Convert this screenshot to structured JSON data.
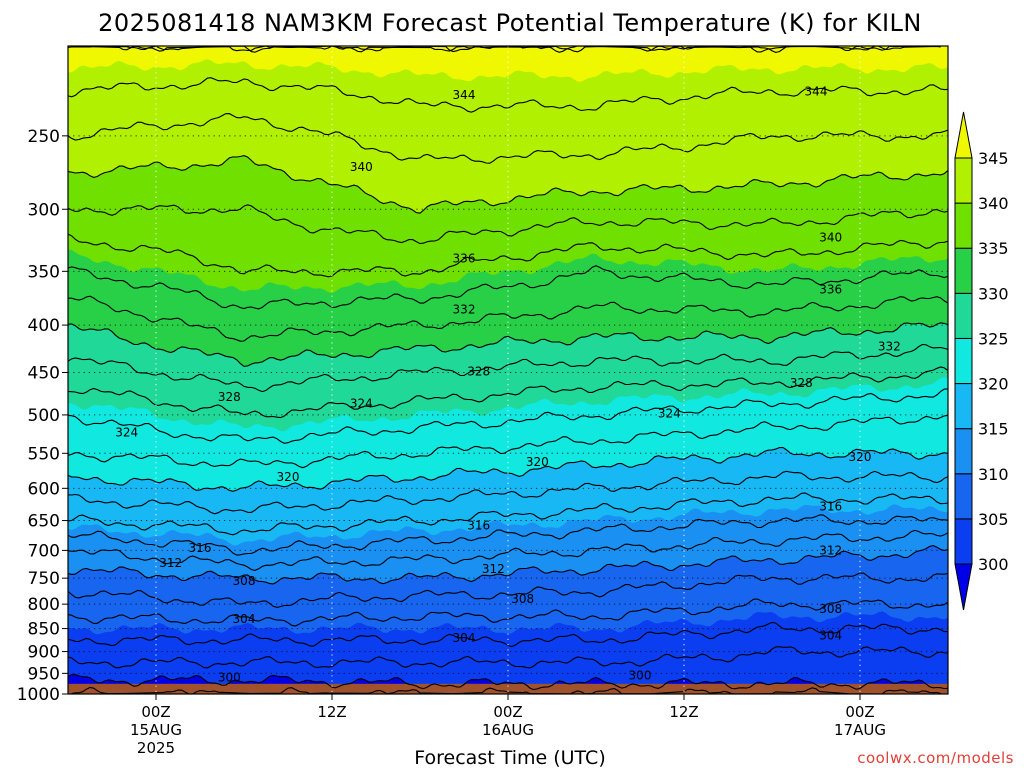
{
  "chart_data": {
    "type": "heatmap",
    "title": "2025081418 NAM3KM Forecast Potential Temperature (K) for KILN",
    "xlabel": "Forecast Time (UTC)",
    "ylabel": "",
    "y_scale": "log",
    "y_reversed": true,
    "y_ticks": [
      250,
      300,
      350,
      400,
      450,
      500,
      550,
      600,
      650,
      700,
      750,
      800,
      850,
      900,
      950,
      1000
    ],
    "y_tick_labels": [
      "250",
      "300",
      "350",
      "400",
      "450",
      "500",
      "550",
      "600",
      "650",
      "700",
      "750",
      "800",
      "850",
      "900",
      "950",
      "1000"
    ],
    "ylim": [
      1000,
      200
    ],
    "x_ticks": [
      {
        "hour": 6,
        "lines": [
          "00Z",
          "15AUG",
          "2025"
        ]
      },
      {
        "hour": 18,
        "lines": [
          "12Z"
        ]
      },
      {
        "hour": 30,
        "lines": [
          "00Z",
          "16AUG"
        ]
      },
      {
        "hour": 42,
        "lines": [
          "12Z"
        ]
      },
      {
        "hour": 54,
        "lines": [
          "00Z",
          "17AUG"
        ]
      }
    ],
    "xlim": [
      0,
      60
    ],
    "grid": true,
    "surface_pressure": 975,
    "colorbar": {
      "levels": [
        300,
        305,
        310,
        315,
        320,
        325,
        330,
        335,
        340,
        345
      ],
      "labels": [
        "300",
        "305",
        "310",
        "315",
        "320",
        "325",
        "330",
        "335",
        "340",
        "345"
      ],
      "colors": [
        "#0000e8",
        "#0a3ef0",
        "#1866f0",
        "#1a90f2",
        "#18b8f4",
        "#10e8e0",
        "#20d898",
        "#28d048",
        "#70e000",
        "#b0f000",
        "#f0f800"
      ],
      "position": "right"
    },
    "contour_interval": 2,
    "contour_labels": [
      {
        "value": 344,
        "hour": 27,
        "p": 226
      },
      {
        "value": 344,
        "hour": 51,
        "p": 224
      },
      {
        "value": 340,
        "hour": 20,
        "p": 270
      },
      {
        "value": 340,
        "hour": 52,
        "p": 322
      },
      {
        "value": 336,
        "hour": 27,
        "p": 339
      },
      {
        "value": 336,
        "hour": 52,
        "p": 366
      },
      {
        "value": 332,
        "hour": 27,
        "p": 385
      },
      {
        "value": 332,
        "hour": 56,
        "p": 422
      },
      {
        "value": 328,
        "hour": 11,
        "p": 478
      },
      {
        "value": 328,
        "hour": 28,
        "p": 449
      },
      {
        "value": 328,
        "hour": 50,
        "p": 462
      },
      {
        "value": 324,
        "hour": 4,
        "p": 522
      },
      {
        "value": 324,
        "hour": 20,
        "p": 486
      },
      {
        "value": 324,
        "hour": 41,
        "p": 498
      },
      {
        "value": 320,
        "hour": 15,
        "p": 583
      },
      {
        "value": 320,
        "hour": 32,
        "p": 562
      },
      {
        "value": 320,
        "hour": 54,
        "p": 555
      },
      {
        "value": 316,
        "hour": 9,
        "p": 696
      },
      {
        "value": 316,
        "hour": 28,
        "p": 658
      },
      {
        "value": 316,
        "hour": 52,
        "p": 628
      },
      {
        "value": 312,
        "hour": 7,
        "p": 722
      },
      {
        "value": 312,
        "hour": 29,
        "p": 733
      },
      {
        "value": 312,
        "hour": 52,
        "p": 700
      },
      {
        "value": 308,
        "hour": 12,
        "p": 755
      },
      {
        "value": 308,
        "hour": 31,
        "p": 790
      },
      {
        "value": 308,
        "hour": 52,
        "p": 810
      },
      {
        "value": 304,
        "hour": 12,
        "p": 830
      },
      {
        "value": 304,
        "hour": 27,
        "p": 870
      },
      {
        "value": 304,
        "hour": 52,
        "p": 865
      },
      {
        "value": 300,
        "hour": 11,
        "p": 960
      },
      {
        "value": 300,
        "hour": 39,
        "p": 955
      }
    ],
    "theta_profile": [
      {
        "hour": 0,
        "theta": [
          [
            1000,
            298
          ],
          [
            950,
            301
          ],
          [
            900,
            303
          ],
          [
            850,
            305
          ],
          [
            800,
            307
          ],
          [
            750,
            309
          ],
          [
            700,
            312
          ],
          [
            650,
            316
          ],
          [
            600,
            319
          ],
          [
            550,
            322
          ],
          [
            500,
            324
          ],
          [
            450,
            327
          ],
          [
            400,
            330
          ],
          [
            350,
            334
          ],
          [
            300,
            338
          ],
          [
            250,
            342
          ],
          [
            200,
            346
          ]
        ]
      },
      {
        "hour": 12,
        "theta": [
          [
            1000,
            298
          ],
          [
            950,
            301
          ],
          [
            900,
            303
          ],
          [
            850,
            305
          ],
          [
            800,
            308
          ],
          [
            750,
            310
          ],
          [
            700,
            314
          ],
          [
            650,
            317
          ],
          [
            600,
            320
          ],
          [
            550,
            323
          ],
          [
            500,
            326
          ],
          [
            450,
            329
          ],
          [
            400,
            333
          ],
          [
            350,
            336
          ],
          [
            300,
            338
          ],
          [
            250,
            341
          ],
          [
            200,
            346
          ]
        ]
      },
      {
        "hour": 24,
        "theta": [
          [
            1000,
            299
          ],
          [
            950,
            301
          ],
          [
            900,
            303
          ],
          [
            850,
            305
          ],
          [
            800,
            307
          ],
          [
            750,
            310
          ],
          [
            700,
            313
          ],
          [
            650,
            316
          ],
          [
            600,
            319
          ],
          [
            550,
            322
          ],
          [
            500,
            325
          ],
          [
            450,
            328
          ],
          [
            400,
            332
          ],
          [
            350,
            336
          ],
          [
            300,
            340
          ],
          [
            250,
            343
          ],
          [
            200,
            346
          ]
        ]
      },
      {
        "hour": 36,
        "theta": [
          [
            1000,
            299
          ],
          [
            950,
            301
          ],
          [
            900,
            303
          ],
          [
            850,
            305
          ],
          [
            800,
            307
          ],
          [
            750,
            309
          ],
          [
            700,
            312
          ],
          [
            650,
            315
          ],
          [
            600,
            318
          ],
          [
            550,
            321
          ],
          [
            500,
            324
          ],
          [
            450,
            327
          ],
          [
            400,
            331
          ],
          [
            350,
            334
          ],
          [
            300,
            339
          ],
          [
            250,
            343
          ],
          [
            200,
            346
          ]
        ]
      },
      {
        "hour": 48,
        "theta": [
          [
            1000,
            299
          ],
          [
            950,
            301
          ],
          [
            900,
            302
          ],
          [
            850,
            304
          ],
          [
            800,
            306
          ],
          [
            750,
            308
          ],
          [
            700,
            311
          ],
          [
            650,
            314
          ],
          [
            600,
            317
          ],
          [
            550,
            320
          ],
          [
            500,
            323
          ],
          [
            450,
            327
          ],
          [
            400,
            331
          ],
          [
            350,
            335
          ],
          [
            300,
            339
          ],
          [
            250,
            342
          ],
          [
            200,
            346
          ]
        ]
      },
      {
        "hour": 60,
        "theta": [
          [
            1000,
            299
          ],
          [
            950,
            301
          ],
          [
            900,
            302
          ],
          [
            850,
            304
          ],
          [
            800,
            306
          ],
          [
            750,
            308
          ],
          [
            700,
            310
          ],
          [
            650,
            314
          ],
          [
            600,
            317
          ],
          [
            550,
            320
          ],
          [
            500,
            322
          ],
          [
            450,
            326
          ],
          [
            400,
            330
          ],
          [
            350,
            334
          ],
          [
            300,
            338
          ],
          [
            250,
            342
          ],
          [
            200,
            346
          ]
        ]
      }
    ]
  },
  "credit": "coolwx.com/models"
}
